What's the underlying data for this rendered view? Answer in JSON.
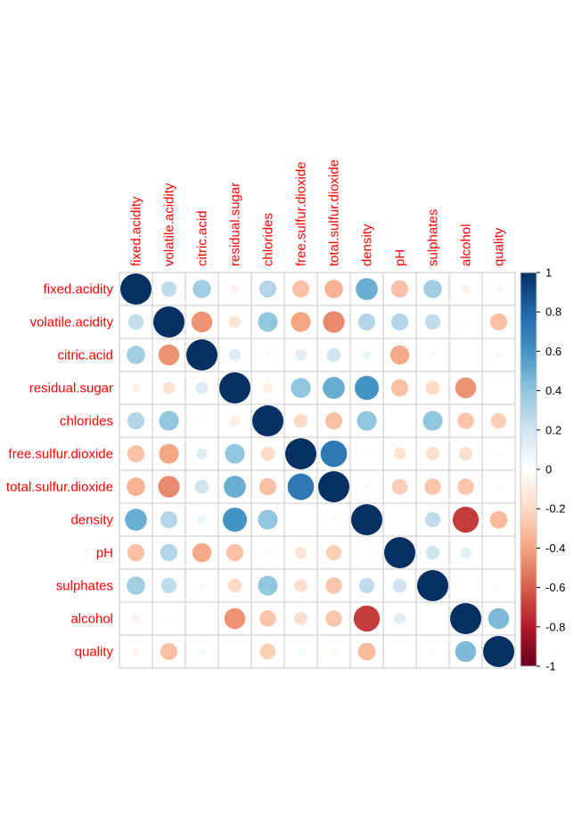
{
  "chart_data": {
    "type": "heatmap",
    "method": "circle",
    "title": "",
    "variables": [
      "fixed.acidity",
      "volatile.acidity",
      "citric.acid",
      "residual.sugar",
      "chlorides",
      "free.sulfur.dioxide",
      "total.sulfur.dioxide",
      "density",
      "pH",
      "sulphates",
      "alcohol",
      "quality"
    ],
    "matrix": [
      [
        1.0,
        0.25,
        0.35,
        -0.08,
        0.3,
        -0.3,
        -0.35,
        0.5,
        -0.3,
        0.35,
        -0.08,
        -0.05
      ],
      [
        0.25,
        1.0,
        -0.45,
        -0.15,
        0.4,
        -0.4,
        -0.48,
        0.3,
        0.3,
        0.25,
        -0.03,
        -0.3
      ],
      [
        0.35,
        -0.45,
        1.0,
        0.15,
        0.03,
        0.13,
        0.2,
        0.08,
        -0.38,
        0.03,
        0.0,
        0.05
      ],
      [
        -0.08,
        -0.15,
        0.15,
        1.0,
        -0.1,
        0.4,
        0.5,
        0.6,
        -0.3,
        -0.2,
        -0.45,
        -0.02
      ],
      [
        0.3,
        0.4,
        0.03,
        -0.1,
        1.0,
        -0.2,
        -0.3,
        0.4,
        0.03,
        0.4,
        -0.28,
        -0.25
      ],
      [
        -0.3,
        -0.4,
        0.13,
        0.4,
        -0.2,
        1.0,
        0.72,
        0.02,
        -0.15,
        -0.18,
        -0.18,
        0.05
      ],
      [
        -0.35,
        -0.48,
        0.2,
        0.5,
        -0.3,
        0.72,
        1.0,
        0.03,
        -0.25,
        -0.28,
        -0.28,
        -0.04
      ],
      [
        0.5,
        0.3,
        0.08,
        0.6,
        0.4,
        0.02,
        0.03,
        1.0,
        0.0,
        0.25,
        -0.7,
        -0.32
      ],
      [
        -0.3,
        0.3,
        -0.38,
        -0.3,
        0.03,
        -0.15,
        -0.25,
        0.0,
        1.0,
        0.2,
        0.13,
        0.02
      ],
      [
        0.35,
        0.25,
        0.03,
        -0.2,
        0.4,
        -0.18,
        -0.28,
        0.25,
        0.2,
        1.0,
        0.0,
        0.03
      ],
      [
        -0.08,
        -0.03,
        0.0,
        -0.45,
        -0.28,
        -0.18,
        -0.28,
        -0.7,
        0.13,
        0.0,
        1.0,
        0.45
      ],
      [
        -0.05,
        -0.3,
        0.05,
        -0.02,
        -0.25,
        0.05,
        -0.04,
        -0.32,
        0.02,
        0.03,
        0.45,
        1.0
      ]
    ],
    "colorbar": {
      "ticks": [
        "1",
        "0.8",
        "0.6",
        "0.4",
        "0.2",
        "0",
        "-0.2",
        "-0.4",
        "-0.6",
        "-0.8",
        "-1"
      ],
      "range": [
        -1,
        1
      ],
      "low_color": "#67001f",
      "mid_color": "#ffffff",
      "high_color": "#053061"
    },
    "label_color": "#ff0000",
    "grid": true,
    "legend": "right"
  }
}
